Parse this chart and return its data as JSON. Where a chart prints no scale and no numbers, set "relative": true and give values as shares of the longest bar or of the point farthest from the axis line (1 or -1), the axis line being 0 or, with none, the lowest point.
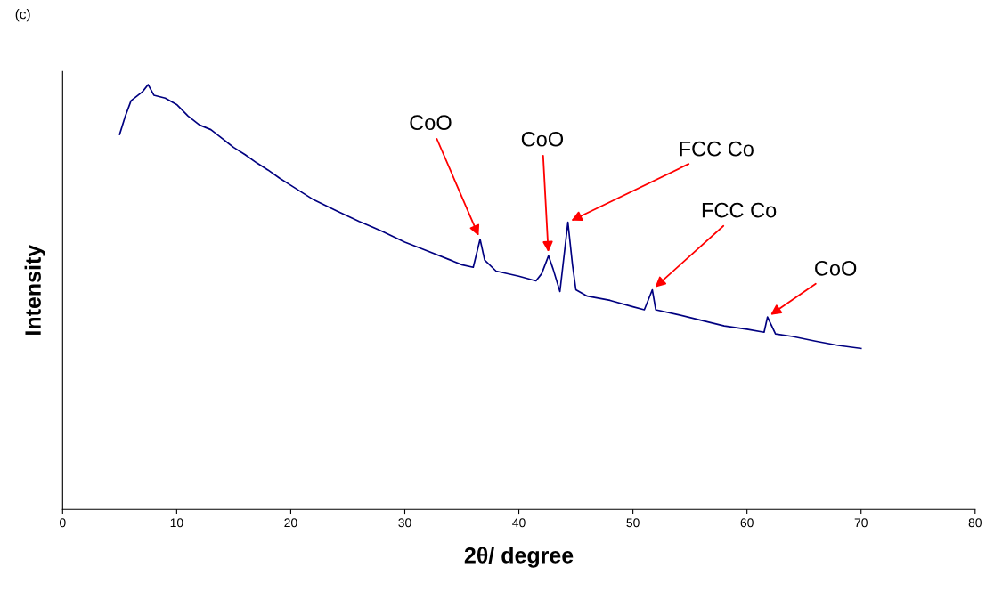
{
  "chart_data": {
    "type": "line",
    "relative": true,
    "xlabel": "2θ/ degree",
    "ylabel": "Intensity",
    "xlim": [
      0,
      80
    ],
    "xticks": [
      0,
      10,
      20,
      30,
      40,
      50,
      60,
      70,
      80
    ],
    "tick_labels": "x",
    "grid": false,
    "marker": "none",
    "line_style": "solid",
    "x": [
      5,
      5.5,
      6,
      7,
      7.5,
      8,
      9,
      10,
      11,
      12,
      13,
      14,
      15,
      16,
      17,
      18,
      19,
      20,
      22,
      24,
      26,
      28,
      30,
      32,
      34,
      35,
      36,
      36.6,
      37,
      38,
      40,
      41.5,
      42,
      42.6,
      43,
      43.6,
      44.3,
      44.7,
      45,
      46,
      48,
      50,
      51,
      51.7,
      52,
      54,
      56,
      58,
      60,
      61.5,
      61.8,
      62.5,
      64,
      66,
      68,
      70
    ],
    "series": [
      {
        "color": "#000080",
        "values": [
          0.883,
          0.926,
          0.962,
          0.983,
          1.0,
          0.975,
          0.968,
          0.953,
          0.926,
          0.905,
          0.894,
          0.873,
          0.852,
          0.835,
          0.816,
          0.799,
          0.78,
          0.763,
          0.729,
          0.703,
          0.678,
          0.655,
          0.629,
          0.608,
          0.587,
          0.576,
          0.57,
          0.636,
          0.587,
          0.561,
          0.549,
          0.538,
          0.555,
          0.597,
          0.566,
          0.513,
          0.676,
          0.576,
          0.517,
          0.502,
          0.492,
          0.477,
          0.47,
          0.517,
          0.47,
          0.458,
          0.445,
          0.432,
          0.424,
          0.417,
          0.453,
          0.413,
          0.407,
          0.396,
          0.386,
          0.379
        ]
      }
    ],
    "annotations": [
      "(c)",
      {
        "text": "CoO",
        "x": 36.6,
        "y": 0.636
      },
      {
        "text": "CoO",
        "x": 42.6,
        "y": 0.597
      },
      {
        "text": "FCC Co",
        "x": 44.3,
        "y": 0.676
      },
      {
        "text": "FCC Co",
        "x": 51.7,
        "y": 0.517
      },
      {
        "text": "CoO",
        "x": 61.8,
        "y": 0.453
      }
    ]
  }
}
